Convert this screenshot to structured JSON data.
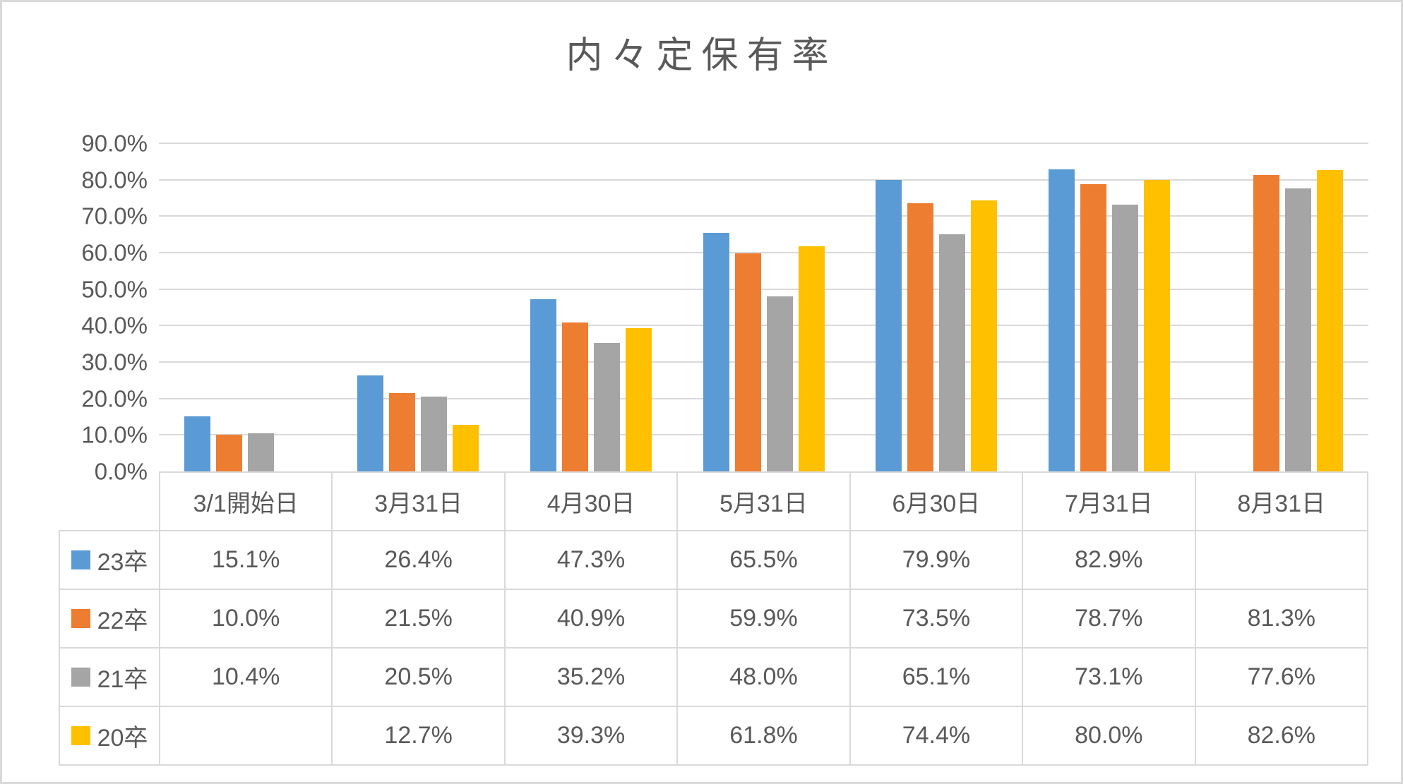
{
  "chart_data": {
    "type": "bar",
    "title": "内々定保有率",
    "xlabel": "",
    "ylabel": "",
    "grid": true,
    "legend_position": "table-left",
    "data_table_shown": true,
    "categories": [
      "3/1開始日",
      "3月31日",
      "4月30日",
      "5月31日",
      "6月30日",
      "7月31日",
      "8月31日"
    ],
    "series": [
      {
        "name": "23卒",
        "color": "#5B9BD5",
        "values": [
          15.1,
          26.4,
          47.3,
          65.5,
          79.9,
          82.9,
          null
        ]
      },
      {
        "name": "22卒",
        "color": "#ED7D31",
        "values": [
          10.0,
          21.5,
          40.9,
          59.9,
          73.5,
          78.7,
          81.3
        ]
      },
      {
        "name": "21卒",
        "color": "#A5A5A5",
        "values": [
          10.4,
          20.5,
          35.2,
          48.0,
          65.1,
          73.1,
          77.6
        ]
      },
      {
        "name": "20卒",
        "color": "#FFC000",
        "values": [
          null,
          12.7,
          39.3,
          61.8,
          74.4,
          80.0,
          82.6
        ]
      }
    ],
    "y_axis": {
      "min": 0,
      "max": 90,
      "step": 10,
      "tick_labels": [
        "0.0%",
        "10.0%",
        "20.0%",
        "30.0%",
        "40.0%",
        "50.0%",
        "60.0%",
        "70.0%",
        "80.0%",
        "90.0%"
      ]
    },
    "value_suffix": "%",
    "value_decimals": 1
  },
  "colors": {
    "background": "#FFFFFF",
    "frame_border": "#D9D9D9",
    "gridline": "#D9D9D9",
    "table_border": "#D9D9D9",
    "text": "#595959"
  }
}
